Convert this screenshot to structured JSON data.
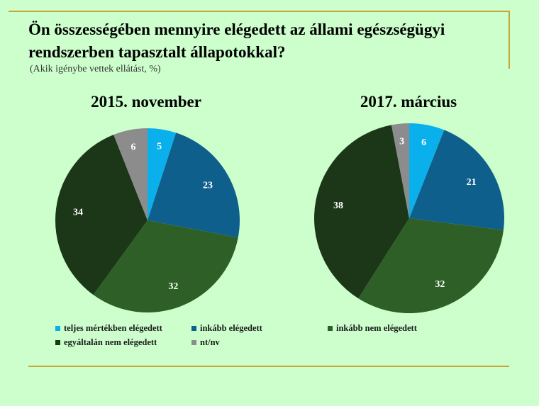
{
  "title": "Ön összességében mennyire elégedett az állami egészségügyi rendszerben tapasztalt állapotokkal?",
  "subtitle": "(Akik igénybe vettek ellátást, %)",
  "colors": {
    "teljes": "#0ab0ec",
    "inkabb_elegedett": "#0f5f8c",
    "inkabb_nem": "#2e5f26",
    "egyaltalan_nem": "#1c3618",
    "ntnv": "#8c8c8c",
    "background": "#ccffcc",
    "rule": "#c8a43a"
  },
  "chart_data": [
    {
      "type": "pie",
      "title": "2015. november",
      "categories": [
        "teljes mértékben elégedett",
        "inkább elégedett",
        "inkább nem elégedett",
        "egyáltalán nem elégedett",
        "nt/nv"
      ],
      "values": [
        5,
        23,
        32,
        34,
        6
      ]
    },
    {
      "type": "pie",
      "title": "2017. március",
      "categories": [
        "teljes mértékben elégedett",
        "inkább elégedett",
        "inkább nem elégedett",
        "egyáltalán nem elégedett",
        "nt/nv"
      ],
      "values": [
        6,
        21,
        32,
        38,
        3
      ]
    }
  ],
  "legend": [
    "teljes mértékben elégedett",
    "inkább elégedett",
    "inkább nem elégedett",
    "egyáltalán nem elégedett",
    "nt/nv"
  ]
}
